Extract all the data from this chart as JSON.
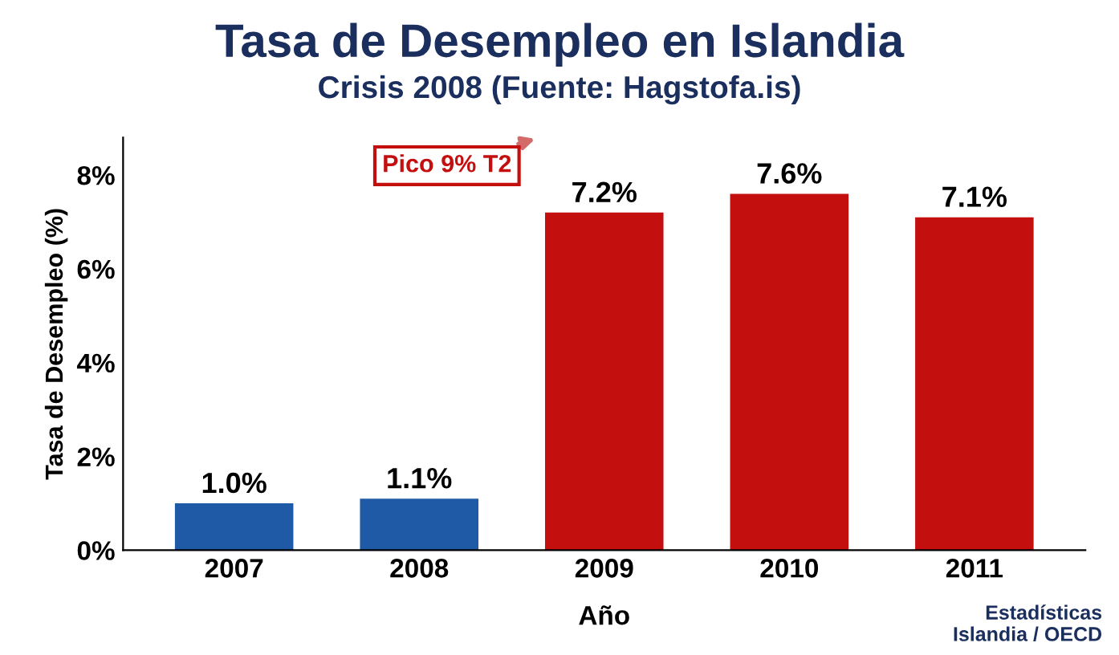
{
  "chart_data": {
    "type": "bar",
    "title": "Tasa de Desempleo en Islandia",
    "subtitle": "Crisis 2008 (Fuente: Hagstofa.is)",
    "xlabel": "Año",
    "ylabel": "Tasa de Desempleo (%)",
    "categories": [
      "2007",
      "2008",
      "2009",
      "2010",
      "2011"
    ],
    "values": [
      1.0,
      1.1,
      7.2,
      7.6,
      7.1
    ],
    "colors": [
      "#1f5aa6",
      "#1f5aa6",
      "#c40f0f",
      "#c40f0f",
      "#c40f0f"
    ],
    "value_labels": [
      "1.0%",
      "1.1%",
      "7.2%",
      "7.6%",
      "7.1%"
    ],
    "ylim": [
      0,
      8.8
    ],
    "yticks": [
      {
        "value": 0,
        "label": "0%"
      },
      {
        "value": 2,
        "label": "2%"
      },
      {
        "value": 4,
        "label": "4%"
      },
      {
        "value": 6,
        "label": "6%"
      },
      {
        "value": 8,
        "label": "8%"
      }
    ],
    "annotations": [
      "Pico 9% T2",
      "Estadísticas\nIslandia / OECD"
    ],
    "grid": false,
    "legend": false
  }
}
